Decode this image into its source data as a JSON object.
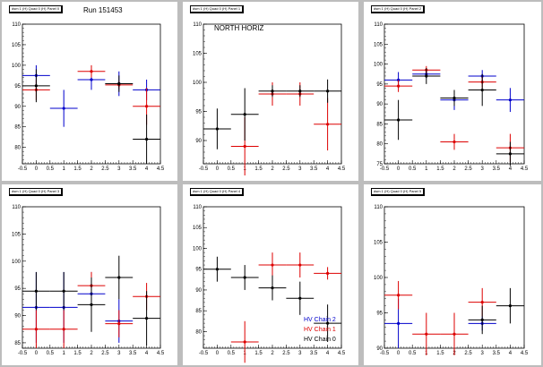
{
  "chart_data": [
    {
      "type": "scatter",
      "title": "dsm 1 (H) Quad 0 (H) Panel 0",
      "annotation": "Run 151453",
      "xlim": [
        -0.5,
        4.5
      ],
      "ylim": [
        76,
        110
      ],
      "xticks": [
        -0.5,
        0,
        0.5,
        1,
        1.5,
        2,
        2.5,
        3,
        3.5,
        4,
        4.5
      ],
      "yticks": [
        80,
        85,
        90,
        95,
        100,
        105,
        110
      ],
      "series": [
        {
          "color": "#0000cc",
          "points": [
            {
              "x": 0,
              "y": 97.5,
              "ey": 2.5
            },
            {
              "x": 1,
              "y": 89.5,
              "ey": 4.5
            },
            {
              "x": 2,
              "y": 96.5,
              "ey": 2.5
            },
            {
              "x": 3,
              "y": 95.5,
              "ey": 3
            },
            {
              "x": 4,
              "y": 94,
              "ey": 2.5
            }
          ]
        },
        {
          "color": "#dd0000",
          "points": [
            {
              "x": 0,
              "y": 94,
              "ey": 2.5
            },
            {
              "x": 2,
              "y": 98.5,
              "ey": 1.5
            },
            {
              "x": 3,
              "y": 95.2,
              "ey": 1
            },
            {
              "x": 4,
              "y": 90,
              "ey": 4.5
            }
          ]
        },
        {
          "color": "#000000",
          "points": [
            {
              "x": 0,
              "y": 95,
              "ey": 4
            },
            {
              "x": 3,
              "y": 95.5,
              "ey": 2
            },
            {
              "x": 4,
              "y": 82,
              "ey": 6
            }
          ]
        }
      ]
    },
    {
      "type": "scatter",
      "title": "dsm 1 (H) Quad 0 (H) Panel 1",
      "annotation": "NORTH HORIZ",
      "xlim": [
        -0.5,
        4.5
      ],
      "ylim": [
        86,
        110
      ],
      "xticks": [
        -0.5,
        0,
        0.5,
        1,
        1.5,
        2,
        2.5,
        3,
        3.5,
        4,
        4.5
      ],
      "yticks": [
        90,
        95,
        100,
        105,
        110
      ],
      "series": [
        {
          "color": "#0000cc",
          "points": []
        },
        {
          "color": "#dd0000",
          "points": [
            {
              "x": 1,
              "y": 89,
              "ey": 5
            },
            {
              "x": 2,
              "y": 98,
              "ey": 2
            },
            {
              "x": 3,
              "y": 98,
              "ey": 2
            },
            {
              "x": 4,
              "y": 92.8,
              "ey": 4.5
            }
          ]
        },
        {
          "color": "#000000",
          "points": [
            {
              "x": 0,
              "y": 92,
              "ey": 3.5
            },
            {
              "x": 1,
              "y": 94.5,
              "ey": 4.5
            },
            {
              "x": 2,
              "y": 98.5,
              "ey": 1
            },
            {
              "x": 3,
              "y": 98.5,
              "ey": 1
            },
            {
              "x": 4,
              "y": 98.5,
              "ey": 2
            }
          ]
        }
      ]
    },
    {
      "type": "scatter",
      "title": "dsm 1 (H) Quad 0 (H) Panel 2",
      "annotation": "",
      "xlim": [
        -0.5,
        4.5
      ],
      "ylim": [
        75,
        110
      ],
      "xticks": [
        -0.5,
        0,
        0.5,
        1,
        1.5,
        2,
        2.5,
        3,
        3.5,
        4,
        4.5
      ],
      "yticks": [
        75,
        80,
        85,
        90,
        95,
        100,
        105,
        110
      ],
      "series": [
        {
          "color": "#0000cc",
          "points": [
            {
              "x": 0,
              "y": 96,
              "ey": 2
            },
            {
              "x": 1,
              "y": 97.5,
              "ey": 1
            },
            {
              "x": 2,
              "y": 91,
              "ey": 2.5
            },
            {
              "x": 3,
              "y": 97,
              "ey": 1.5
            },
            {
              "x": 4,
              "y": 91,
              "ey": 3
            }
          ]
        },
        {
          "color": "#dd0000",
          "points": [
            {
              "x": 0,
              "y": 94.5,
              "ey": 1.5
            },
            {
              "x": 1,
              "y": 98.5,
              "ey": 1
            },
            {
              "x": 2,
              "y": 80.5,
              "ey": 2
            },
            {
              "x": 3,
              "y": 95.5,
              "ey": 1.5
            },
            {
              "x": 4,
              "y": 79,
              "ey": 3.5
            }
          ]
        },
        {
          "color": "#000000",
          "points": [
            {
              "x": 0,
              "y": 86,
              "ey": 5
            },
            {
              "x": 1,
              "y": 97,
              "ey": 2
            },
            {
              "x": 2,
              "y": 91.5,
              "ey": 2
            },
            {
              "x": 3,
              "y": 93.5,
              "ey": 4
            },
            {
              "x": 4,
              "y": 77.5,
              "ey": 3
            }
          ]
        }
      ]
    },
    {
      "type": "scatter",
      "title": "dsm 1 (H) Quad 0 (H) Panel 3",
      "annotation": "",
      "xlim": [
        -0.5,
        4.5
      ],
      "ylim": [
        84,
        110
      ],
      "xticks": [
        -0.5,
        0,
        0.5,
        1,
        1.5,
        2,
        2.5,
        3,
        3.5,
        4,
        4.5
      ],
      "yticks": [
        85,
        90,
        95,
        100,
        105,
        110
      ],
      "series": [
        {
          "color": "#0000cc",
          "points": [
            {
              "x": 0,
              "y": 91.5,
              "ey": 6.5
            },
            {
              "x": 1,
              "y": 91.5,
              "ey": 6.5
            },
            {
              "x": 2,
              "y": 94,
              "ey": 4
            },
            {
              "x": 3,
              "y": 89,
              "ey": 4
            }
          ]
        },
        {
          "color": "#dd0000",
          "points": [
            {
              "x": 0,
              "y": 87.5,
              "ey": 3.5
            },
            {
              "x": 1,
              "y": 87.5,
              "ey": 3.5
            },
            {
              "x": 2,
              "y": 95.5,
              "ey": 2.5
            },
            {
              "x": 3,
              "y": 88.5,
              "ey": 2.5
            },
            {
              "x": 4,
              "y": 93.5,
              "ey": 2.5
            }
          ]
        },
        {
          "color": "#000000",
          "points": [
            {
              "x": 0,
              "y": 94.5,
              "ey": 3.5
            },
            {
              "x": 1,
              "y": 94.5,
              "ey": 3.5
            },
            {
              "x": 2,
              "y": 92,
              "ey": 5
            },
            {
              "x": 3,
              "y": 97,
              "ey": 4
            },
            {
              "x": 4,
              "y": 89.5,
              "ey": 5
            }
          ]
        }
      ]
    },
    {
      "type": "scatter",
      "title": "dsm 1 (H) Quad 0 (H) Panel 4",
      "annotation": "",
      "xlim": [
        -0.5,
        4.5
      ],
      "ylim": [
        76,
        110
      ],
      "xticks": [
        -0.5,
        0,
        0.5,
        1,
        1.5,
        2,
        2.5,
        3,
        3.5,
        4,
        4.5
      ],
      "yticks": [
        80,
        85,
        90,
        95,
        100,
        105,
        110
      ],
      "series": [
        {
          "name": "HV Chain 2",
          "color": "#0000cc",
          "points": []
        },
        {
          "name": "HV Chain 1",
          "color": "#dd0000",
          "points": [
            {
              "x": 1,
              "y": 77.5,
              "ey": 5
            },
            {
              "x": 2,
              "y": 96,
              "ey": 3
            },
            {
              "x": 3,
              "y": 96,
              "ey": 3
            },
            {
              "x": 4,
              "y": 94,
              "ey": 1.5
            }
          ]
        },
        {
          "name": "HV Chain 0",
          "color": "#000000",
          "points": [
            {
              "x": 0,
              "y": 95,
              "ey": 3
            },
            {
              "x": 1,
              "y": 93,
              "ey": 3
            },
            {
              "x": 2,
              "y": 90.5,
              "ey": 3
            },
            {
              "x": 3,
              "y": 88,
              "ey": 4
            },
            {
              "x": 4,
              "y": 82,
              "ey": 4.5
            }
          ]
        }
      ],
      "legend_position": "bottom-right"
    },
    {
      "type": "scatter",
      "title": "dsm 1 (H) Quad 0 (H) Panel 5",
      "annotation": "",
      "xlim": [
        -0.5,
        4.5
      ],
      "ylim": [
        90,
        110
      ],
      "xticks": [
        -0.5,
        0,
        0.5,
        1,
        1.5,
        2,
        2.5,
        3,
        3.5,
        4,
        4.5
      ],
      "yticks": [
        90,
        95,
        100,
        105,
        110
      ],
      "series": [
        {
          "color": "#0000cc",
          "points": [
            {
              "x": 0,
              "y": 93.5,
              "ey": 3.5
            },
            {
              "x": 3,
              "y": 93.5,
              "ey": 1
            }
          ]
        },
        {
          "color": "#dd0000",
          "points": [
            {
              "x": 0,
              "y": 97.5,
              "ey": 2
            },
            {
              "x": 1,
              "y": 92,
              "ey": 3
            },
            {
              "x": 2,
              "y": 92,
              "ey": 3
            },
            {
              "x": 3,
              "y": 96.5,
              "ey": 2
            }
          ]
        },
        {
          "color": "#000000",
          "points": [
            {
              "x": 3,
              "y": 94,
              "ey": 2
            },
            {
              "x": 4,
              "y": 96,
              "ey": 2.5
            }
          ]
        }
      ]
    }
  ]
}
